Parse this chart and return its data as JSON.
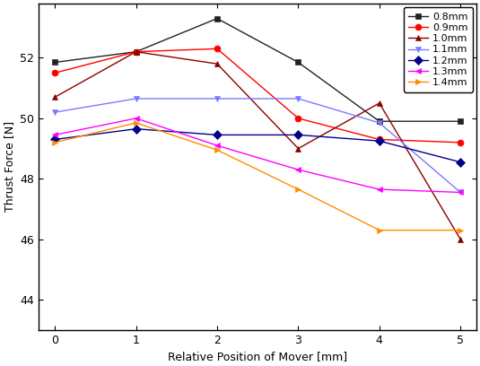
{
  "x": [
    0,
    1,
    2,
    3,
    4,
    5
  ],
  "series": [
    {
      "label": "0.8mm",
      "color": "#222222",
      "marker": "s",
      "values": [
        51.85,
        52.2,
        53.3,
        51.85,
        49.9,
        49.9
      ]
    },
    {
      "label": "0.9mm",
      "color": "#ff0000",
      "marker": "o",
      "values": [
        51.5,
        52.2,
        52.3,
        50.0,
        49.3,
        49.2
      ]
    },
    {
      "label": "1.0mm",
      "color": "#8b0000",
      "marker": "^",
      "values": [
        50.7,
        52.2,
        51.8,
        49.0,
        50.5,
        46.0
      ]
    },
    {
      "label": "1.1mm",
      "color": "#7b7bff",
      "marker": "v",
      "values": [
        50.2,
        50.65,
        50.65,
        50.65,
        49.85,
        47.55
      ]
    },
    {
      "label": "1.2mm",
      "color": "#00008b",
      "marker": "D",
      "values": [
        49.3,
        49.65,
        49.45,
        49.45,
        49.25,
        48.55
      ]
    },
    {
      "label": "1.3mm",
      "color": "#ff00ff",
      "marker": "<",
      "values": [
        49.45,
        50.0,
        49.1,
        48.3,
        47.65,
        47.55
      ]
    },
    {
      "label": "1.4mm",
      "color": "#ff8c00",
      "marker": ">",
      "values": [
        49.2,
        49.85,
        48.95,
        47.65,
        46.3,
        46.3
      ]
    }
  ],
  "xlabel": "Relative Position of Mover [mm]",
  "ylabel": "Thrust Force [N]",
  "xlim": [
    -0.2,
    5.2
  ],
  "ylim": [
    43.0,
    53.8
  ],
  "yticks": [
    44,
    46,
    48,
    50,
    52
  ],
  "xticks": [
    0,
    1,
    2,
    3,
    4,
    5
  ],
  "figsize": [
    5.35,
    4.08
  ],
  "dpi": 100
}
